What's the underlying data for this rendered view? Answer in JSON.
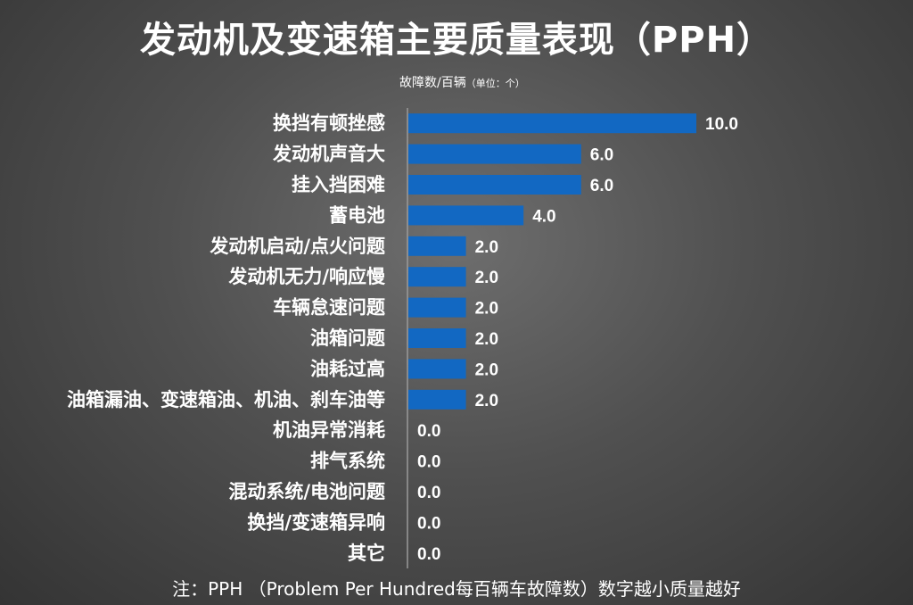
{
  "title": "发动机及变速箱主要质量表现（PPH）",
  "units_main": "故障数/百辆",
  "units_note": "（单位：个）",
  "footnote": "注：PPH （Problem Per Hundred每百辆车故障数）数字越小质量越好",
  "colors": {
    "bar": "#1268C2",
    "axis": "#9a9a9a"
  },
  "chart_data": {
    "type": "bar",
    "orientation": "horizontal",
    "categories": [
      "换挡有顿挫感",
      "发动机声音大",
      "挂入挡困难",
      "蓄电池",
      "发动机启动/点火问题",
      "发动机无力/响应慢",
      "车辆怠速问题",
      "油箱问题",
      "油耗过高",
      "油箱漏油、变速箱油、机油、刹车油等",
      "机油异常消耗",
      "排气系统",
      "混动系统/电池问题",
      "换挡/变速箱异响",
      "其它"
    ],
    "values": [
      10.0,
      6.0,
      6.0,
      4.0,
      2.0,
      2.0,
      2.0,
      2.0,
      2.0,
      2.0,
      0.0,
      0.0,
      0.0,
      0.0,
      0.0
    ],
    "value_labels": [
      "10.0",
      "6.0",
      "6.0",
      "4.0",
      "2.0",
      "2.0",
      "2.0",
      "2.0",
      "2.0",
      "2.0",
      "0.0",
      "0.0",
      "0.0",
      "0.0",
      "0.0"
    ],
    "xlim": [
      0,
      10
    ],
    "title": "发动机及变速箱主要质量表现（PPH）",
    "xlabel": "",
    "ylabel": "",
    "grid": false,
    "legend": "none"
  }
}
